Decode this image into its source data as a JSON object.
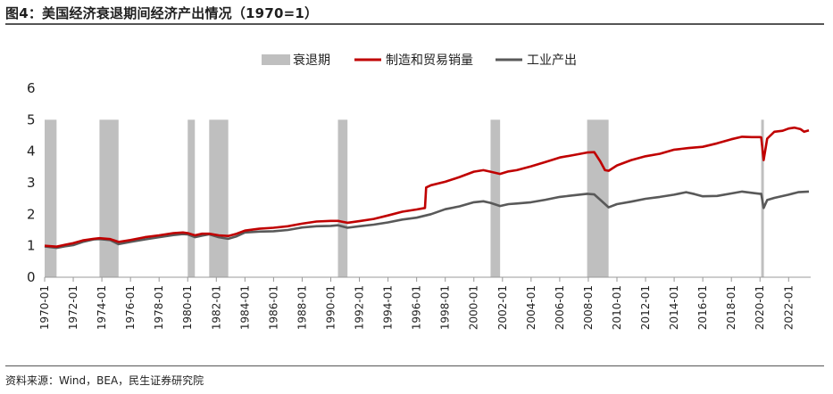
{
  "title": "图4：美国经济衰退期间经济产出情况（1970=1）",
  "source": "资料来源：Wind，BEA，民生证券研究院",
  "chart_data": {
    "type": "line",
    "title": "图4：美国经济衰退期间经济产出情况（1970=1）",
    "xlabel": "",
    "ylabel": "",
    "x_range": [
      "1970-01",
      "2023-06"
    ],
    "ylim": [
      0,
      6
    ],
    "yticks": [
      0,
      1,
      2,
      3,
      4,
      5,
      6
    ],
    "xticks": [
      "1970-01",
      "1972-01",
      "1974-01",
      "1976-01",
      "1978-01",
      "1980-01",
      "1982-01",
      "1984-01",
      "1986-01",
      "1988-01",
      "1990-01",
      "1992-01",
      "1994-01",
      "1996-01",
      "1998-01",
      "2000-01",
      "2002-01",
      "2004-01",
      "2006-01",
      "2008-01",
      "2010-01",
      "2012-01",
      "2014-01",
      "2016-01",
      "2018-01",
      "2020-01",
      "2022-01"
    ],
    "grid": false,
    "legend_position": "top",
    "recession_label": "衰退期",
    "recession_color": "#bfbfbf",
    "recessions": [
      [
        "1970-01",
        "1970-11"
      ],
      [
        "1973-11",
        "1975-03"
      ],
      [
        "1980-01",
        "1980-07"
      ],
      [
        "1981-07",
        "1982-11"
      ],
      [
        "1990-07",
        "1991-03"
      ],
      [
        "2001-03",
        "2001-11"
      ],
      [
        "2007-12",
        "2009-06"
      ],
      [
        "2020-02",
        "2020-04"
      ]
    ],
    "series": [
      {
        "name": "制造和贸易销量",
        "color": "#c00000",
        "points": [
          [
            "1970-01",
            1.0
          ],
          [
            "1970-11",
            0.97
          ],
          [
            "1971-06",
            1.03
          ],
          [
            "1972-01",
            1.08
          ],
          [
            "1972-09",
            1.17
          ],
          [
            "1973-06",
            1.22
          ],
          [
            "1973-11",
            1.24
          ],
          [
            "1974-08",
            1.21
          ],
          [
            "1975-03",
            1.12
          ],
          [
            "1976-01",
            1.18
          ],
          [
            "1977-01",
            1.27
          ],
          [
            "1978-01",
            1.33
          ],
          [
            "1979-01",
            1.4
          ],
          [
            "1979-09",
            1.42
          ],
          [
            "1980-01",
            1.4
          ],
          [
            "1980-07",
            1.33
          ],
          [
            "1981-01",
            1.38
          ],
          [
            "1981-07",
            1.38
          ],
          [
            "1982-03",
            1.33
          ],
          [
            "1982-11",
            1.31
          ],
          [
            "1983-06",
            1.38
          ],
          [
            "1984-01",
            1.48
          ],
          [
            "1985-01",
            1.54
          ],
          [
            "1986-01",
            1.57
          ],
          [
            "1987-01",
            1.62
          ],
          [
            "1988-01",
            1.7
          ],
          [
            "1989-01",
            1.77
          ],
          [
            "1990-01",
            1.79
          ],
          [
            "1990-07",
            1.79
          ],
          [
            "1991-03",
            1.73
          ],
          [
            "1992-01",
            1.78
          ],
          [
            "1993-01",
            1.85
          ],
          [
            "1994-01",
            1.96
          ],
          [
            "1995-01",
            2.08
          ],
          [
            "1996-01",
            2.15
          ],
          [
            "1996-08",
            2.2
          ],
          [
            "1996-09",
            2.85
          ],
          [
            "1997-01",
            2.92
          ],
          [
            "1998-01",
            3.03
          ],
          [
            "1999-01",
            3.18
          ],
          [
            "2000-01",
            3.35
          ],
          [
            "2000-09",
            3.4
          ],
          [
            "2001-03",
            3.35
          ],
          [
            "2001-11",
            3.28
          ],
          [
            "2002-06",
            3.36
          ],
          [
            "2003-01",
            3.4
          ],
          [
            "2004-01",
            3.52
          ],
          [
            "2005-01",
            3.66
          ],
          [
            "2006-01",
            3.8
          ],
          [
            "2007-01",
            3.88
          ],
          [
            "2007-12",
            3.96
          ],
          [
            "2008-06",
            3.97
          ],
          [
            "2008-11",
            3.68
          ],
          [
            "2009-03",
            3.4
          ],
          [
            "2009-06",
            3.38
          ],
          [
            "2010-01",
            3.55
          ],
          [
            "2011-01",
            3.72
          ],
          [
            "2012-01",
            3.84
          ],
          [
            "2013-01",
            3.92
          ],
          [
            "2014-01",
            4.05
          ],
          [
            "2015-01",
            4.1
          ],
          [
            "2016-01",
            4.14
          ],
          [
            "2017-01",
            4.25
          ],
          [
            "2018-01",
            4.38
          ],
          [
            "2018-10",
            4.46
          ],
          [
            "2019-06",
            4.45
          ],
          [
            "2020-01",
            4.45
          ],
          [
            "2020-02",
            4.44
          ],
          [
            "2020-04",
            3.72
          ],
          [
            "2020-07",
            4.4
          ],
          [
            "2021-01",
            4.62
          ],
          [
            "2021-08",
            4.65
          ],
          [
            "2022-01",
            4.72
          ],
          [
            "2022-06",
            4.75
          ],
          [
            "2022-11",
            4.7
          ],
          [
            "2023-02",
            4.62
          ],
          [
            "2023-06",
            4.66
          ]
        ]
      },
      {
        "name": "工业产出",
        "color": "#595959",
        "points": [
          [
            "1970-01",
            0.98
          ],
          [
            "1970-11",
            0.93
          ],
          [
            "1971-06",
            0.98
          ],
          [
            "1972-01",
            1.02
          ],
          [
            "1972-09",
            1.12
          ],
          [
            "1973-06",
            1.2
          ],
          [
            "1973-11",
            1.21
          ],
          [
            "1974-08",
            1.18
          ],
          [
            "1975-03",
            1.05
          ],
          [
            "1976-01",
            1.12
          ],
          [
            "1977-01",
            1.2
          ],
          [
            "1978-01",
            1.27
          ],
          [
            "1979-01",
            1.34
          ],
          [
            "1979-09",
            1.37
          ],
          [
            "1980-01",
            1.36
          ],
          [
            "1980-07",
            1.27
          ],
          [
            "1981-01",
            1.32
          ],
          [
            "1981-07",
            1.36
          ],
          [
            "1982-03",
            1.27
          ],
          [
            "1982-11",
            1.22
          ],
          [
            "1983-06",
            1.3
          ],
          [
            "1984-01",
            1.42
          ],
          [
            "1985-01",
            1.45
          ],
          [
            "1986-01",
            1.46
          ],
          [
            "1987-01",
            1.5
          ],
          [
            "1988-01",
            1.58
          ],
          [
            "1989-01",
            1.62
          ],
          [
            "1990-01",
            1.63
          ],
          [
            "1990-07",
            1.65
          ],
          [
            "1991-03",
            1.57
          ],
          [
            "1992-01",
            1.62
          ],
          [
            "1993-01",
            1.67
          ],
          [
            "1994-01",
            1.74
          ],
          [
            "1995-01",
            1.83
          ],
          [
            "1996-01",
            1.89
          ],
          [
            "1997-01",
            2.0
          ],
          [
            "1998-01",
            2.16
          ],
          [
            "1999-01",
            2.25
          ],
          [
            "2000-01",
            2.38
          ],
          [
            "2000-09",
            2.41
          ],
          [
            "2001-03",
            2.36
          ],
          [
            "2001-11",
            2.26
          ],
          [
            "2002-06",
            2.32
          ],
          [
            "2003-01",
            2.34
          ],
          [
            "2004-01",
            2.38
          ],
          [
            "2005-01",
            2.46
          ],
          [
            "2006-01",
            2.55
          ],
          [
            "2007-01",
            2.6
          ],
          [
            "2007-12",
            2.65
          ],
          [
            "2008-06",
            2.63
          ],
          [
            "2008-11",
            2.46
          ],
          [
            "2009-06",
            2.22
          ],
          [
            "2010-01",
            2.32
          ],
          [
            "2011-01",
            2.4
          ],
          [
            "2012-01",
            2.49
          ],
          [
            "2013-01",
            2.55
          ],
          [
            "2014-01",
            2.62
          ],
          [
            "2014-11",
            2.7
          ],
          [
            "2015-06",
            2.64
          ],
          [
            "2016-01",
            2.57
          ],
          [
            "2017-01",
            2.58
          ],
          [
            "2018-01",
            2.66
          ],
          [
            "2018-10",
            2.72
          ],
          [
            "2019-06",
            2.68
          ],
          [
            "2020-01",
            2.65
          ],
          [
            "2020-02",
            2.65
          ],
          [
            "2020-04",
            2.2
          ],
          [
            "2020-07",
            2.45
          ],
          [
            "2021-01",
            2.52
          ],
          [
            "2022-01",
            2.62
          ],
          [
            "2022-09",
            2.7
          ],
          [
            "2023-06",
            2.72
          ]
        ]
      }
    ]
  }
}
